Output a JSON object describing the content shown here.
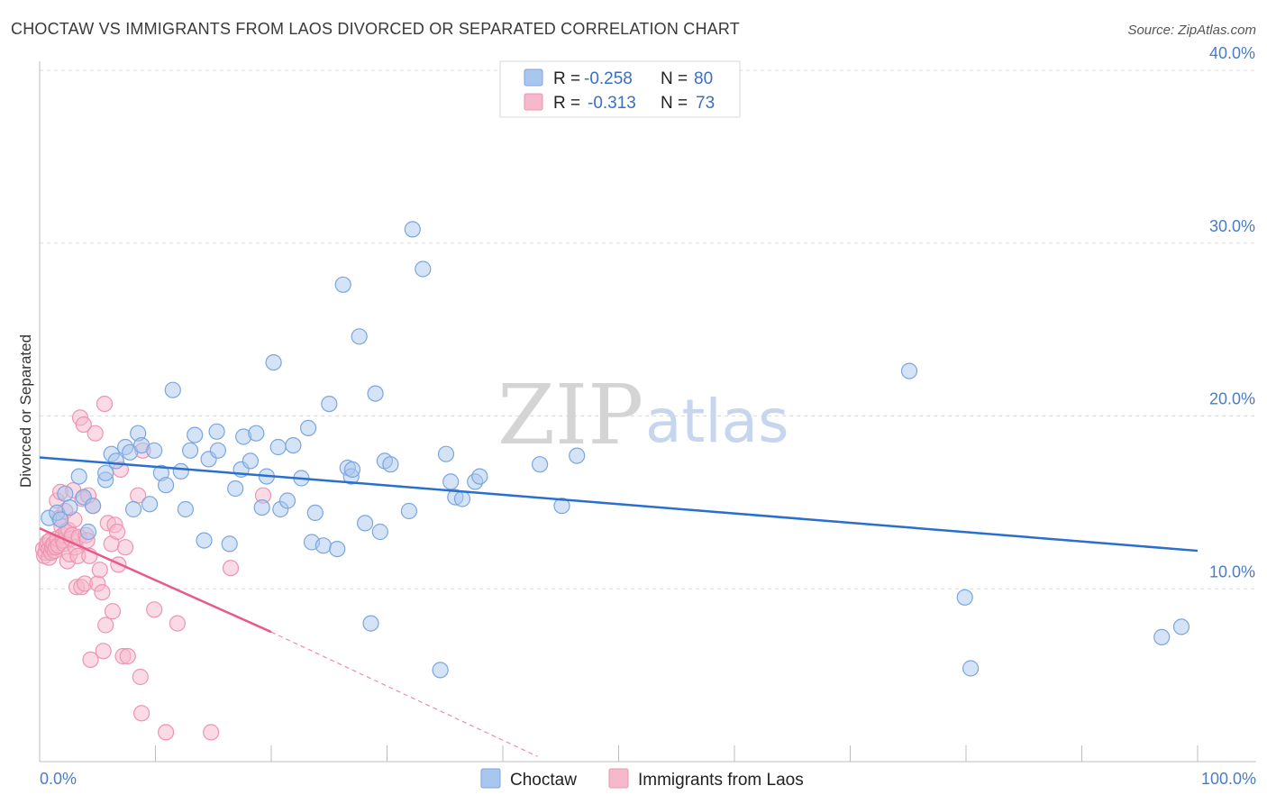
{
  "header": {
    "title": "CHOCTAW VS IMMIGRANTS FROM LAOS DIVORCED OR SEPARATED CORRELATION CHART",
    "source": "Source: ZipAtlas.com"
  },
  "watermark": {
    "zip": "ZIP",
    "atlas": "atlas"
  },
  "legend": {
    "rows": [
      {
        "r_label": "R =",
        "r_value": "-0.258",
        "n_label": "N =",
        "n_value": "80",
        "color": "#a9c7ee"
      },
      {
        "r_label": "R =",
        "r_value": "-0.313",
        "n_label": "N =",
        "n_value": "73",
        "color": "#f6b8cb"
      }
    ]
  },
  "bottom_legend": [
    "Choctaw",
    "Immigrants from Laos"
  ],
  "chart_data": {
    "type": "scatter",
    "title": "CHOCTAW VS IMMIGRANTS FROM LAOS DIVORCED OR SEPARATED CORRELATION CHART",
    "xlabel": "",
    "ylabel": "Divorced or Separated",
    "xlim": [
      0,
      100
    ],
    "ylim": [
      0,
      40
    ],
    "x_tick_labels": [
      "0.0%",
      "100.0%"
    ],
    "y_ticks": [
      10,
      20,
      30,
      40
    ],
    "y_tick_labels": [
      "10.0%",
      "20.0%",
      "30.0%",
      "40.0%"
    ],
    "grid": true,
    "legend_position": "top-center",
    "series": [
      {
        "name": "Choctaw",
        "color": "#a9c7ee",
        "stroke": "#7aa6e0",
        "line_color": "#2a6fce",
        "trend": {
          "x": [
            0,
            100
          ],
          "y": [
            17.6,
            12.2
          ]
        },
        "points": [
          [
            0.8,
            14.1
          ],
          [
            1.5,
            14.4
          ],
          [
            1.8,
            14.0
          ],
          [
            2.2,
            15.5
          ],
          [
            2.6,
            14.7
          ],
          [
            3.4,
            16.5
          ],
          [
            3.8,
            15.3
          ],
          [
            4.2,
            13.3
          ],
          [
            4.6,
            14.8
          ],
          [
            5.7,
            16.3
          ],
          [
            5.7,
            16.7
          ],
          [
            6.2,
            17.8
          ],
          [
            6.6,
            17.4
          ],
          [
            7.4,
            18.2
          ],
          [
            7.8,
            17.9
          ],
          [
            8.1,
            14.6
          ],
          [
            8.5,
            19.0
          ],
          [
            8.8,
            18.3
          ],
          [
            9.5,
            14.9
          ],
          [
            9.9,
            18.0
          ],
          [
            10.5,
            16.7
          ],
          [
            10.9,
            16.0
          ],
          [
            11.5,
            21.5
          ],
          [
            12.2,
            16.8
          ],
          [
            12.6,
            14.6
          ],
          [
            13.0,
            18.0
          ],
          [
            13.4,
            18.9
          ],
          [
            14.2,
            12.8
          ],
          [
            14.6,
            17.5
          ],
          [
            15.3,
            19.1
          ],
          [
            15.4,
            18.0
          ],
          [
            16.4,
            12.6
          ],
          [
            16.9,
            15.8
          ],
          [
            17.4,
            16.9
          ],
          [
            17.6,
            18.8
          ],
          [
            18.2,
            17.4
          ],
          [
            18.7,
            19.0
          ],
          [
            19.2,
            14.7
          ],
          [
            19.6,
            16.5
          ],
          [
            20.2,
            23.1
          ],
          [
            20.6,
            18.2
          ],
          [
            20.8,
            14.6
          ],
          [
            21.4,
            15.1
          ],
          [
            21.9,
            18.3
          ],
          [
            22.6,
            16.4
          ],
          [
            23.2,
            19.3
          ],
          [
            23.5,
            12.7
          ],
          [
            23.8,
            14.4
          ],
          [
            24.5,
            12.5
          ],
          [
            25.0,
            20.7
          ],
          [
            25.7,
            12.3
          ],
          [
            26.2,
            27.6
          ],
          [
            26.6,
            17.0
          ],
          [
            26.9,
            16.5
          ],
          [
            27.6,
            24.6
          ],
          [
            28.1,
            13.8
          ],
          [
            28.6,
            8.0
          ],
          [
            29.0,
            21.3
          ],
          [
            29.4,
            13.3
          ],
          [
            29.8,
            17.4
          ],
          [
            30.3,
            17.2
          ],
          [
            31.9,
            14.5
          ],
          [
            32.2,
            30.8
          ],
          [
            33.1,
            28.5
          ],
          [
            34.6,
            5.3
          ],
          [
            35.1,
            17.8
          ],
          [
            35.5,
            16.2
          ],
          [
            35.9,
            15.3
          ],
          [
            36.5,
            15.2
          ],
          [
            37.6,
            16.2
          ],
          [
            38.0,
            16.5
          ],
          [
            43.2,
            17.2
          ],
          [
            45.1,
            14.8
          ],
          [
            46.4,
            17.7
          ],
          [
            75.1,
            22.6
          ],
          [
            79.9,
            9.5
          ],
          [
            80.4,
            5.4
          ],
          [
            96.9,
            7.2
          ],
          [
            98.6,
            7.8
          ],
          [
            27.0,
            16.9
          ]
        ]
      },
      {
        "name": "Immigrants from Laos",
        "color": "#f6b8cb",
        "stroke": "#ee94b0",
        "line_color": "#e85a88",
        "trend": {
          "x": [
            0,
            20
          ],
          "y": [
            13.5,
            7.5
          ]
        },
        "trend_dashed": {
          "x": [
            20,
            43
          ],
          "y": [
            7.5,
            0.3
          ]
        },
        "points": [
          [
            0.3,
            12.3
          ],
          [
            0.4,
            11.9
          ],
          [
            0.5,
            12.1
          ],
          [
            0.6,
            12.5
          ],
          [
            0.7,
            12.7
          ],
          [
            0.8,
            12.3
          ],
          [
            0.8,
            11.8
          ],
          [
            0.9,
            12.8
          ],
          [
            1.0,
            12.1
          ],
          [
            1.1,
            12.4
          ],
          [
            1.2,
            12.6
          ],
          [
            1.3,
            12.2
          ],
          [
            1.4,
            12.4
          ],
          [
            1.5,
            15.1
          ],
          [
            1.5,
            12.9
          ],
          [
            1.6,
            12.5
          ],
          [
            1.7,
            14.1
          ],
          [
            1.8,
            15.6
          ],
          [
            1.9,
            13.6
          ],
          [
            2.0,
            13.1
          ],
          [
            2.0,
            12.8
          ],
          [
            2.1,
            12.6
          ],
          [
            2.2,
            14.5
          ],
          [
            2.3,
            13.3
          ],
          [
            2.4,
            11.6
          ],
          [
            2.5,
            13.4
          ],
          [
            2.6,
            12.0
          ],
          [
            2.7,
            12.9
          ],
          [
            2.8,
            13.1
          ],
          [
            2.9,
            15.7
          ],
          [
            3.0,
            14.0
          ],
          [
            3.1,
            12.4
          ],
          [
            3.2,
            10.1
          ],
          [
            3.3,
            11.9
          ],
          [
            3.4,
            13.0
          ],
          [
            3.5,
            19.9
          ],
          [
            3.6,
            10.1
          ],
          [
            3.7,
            15.2
          ],
          [
            3.8,
            19.5
          ],
          [
            3.9,
            10.3
          ],
          [
            4.0,
            13.1
          ],
          [
            4.1,
            12.8
          ],
          [
            4.2,
            15.4
          ],
          [
            4.3,
            11.9
          ],
          [
            4.4,
            5.9
          ],
          [
            4.6,
            14.8
          ],
          [
            4.8,
            19.0
          ],
          [
            5.0,
            10.3
          ],
          [
            5.2,
            11.1
          ],
          [
            5.4,
            9.8
          ],
          [
            5.5,
            6.4
          ],
          [
            5.6,
            20.7
          ],
          [
            5.7,
            7.9
          ],
          [
            5.9,
            13.8
          ],
          [
            6.2,
            12.6
          ],
          [
            6.3,
            8.7
          ],
          [
            6.5,
            13.7
          ],
          [
            6.7,
            13.3
          ],
          [
            6.8,
            11.4
          ],
          [
            7.0,
            16.9
          ],
          [
            7.2,
            6.1
          ],
          [
            7.4,
            12.4
          ],
          [
            7.6,
            6.1
          ],
          [
            8.5,
            15.4
          ],
          [
            8.7,
            4.9
          ],
          [
            8.8,
            2.8
          ],
          [
            8.9,
            18.0
          ],
          [
            9.9,
            8.8
          ],
          [
            10.9,
            1.7
          ],
          [
            11.9,
            8.0
          ],
          [
            14.8,
            1.7
          ],
          [
            16.5,
            11.2
          ],
          [
            19.3,
            15.4
          ]
        ]
      }
    ]
  }
}
